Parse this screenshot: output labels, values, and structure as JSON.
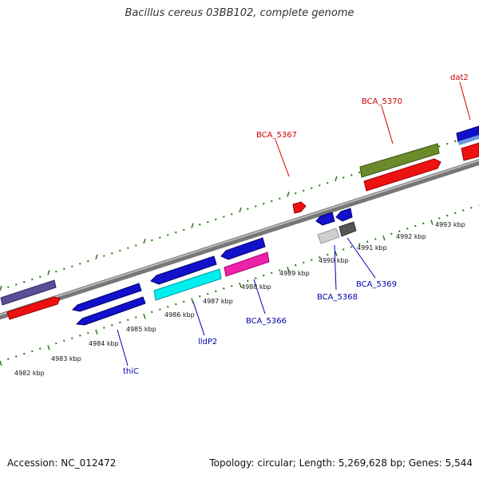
{
  "title": "Bacillus cereus 03BB102, complete genome",
  "footer": {
    "accession": "Accession: NC_012472",
    "topology": "Topology: circular; Length: 5,269,628 bp; Genes: 5,544"
  },
  "scale_labels": [
    "4982 kbp",
    "4983 kbp",
    "4984 kbp",
    "4985 kbp",
    "4986 kbp",
    "4987 kbp",
    "4988 kbp",
    "4989 kbp",
    "4990 kbp",
    "4991 kbp",
    "4992 kbp",
    "4993 kbp"
  ],
  "gene_labels": {
    "forward": [
      "BCA_5367",
      "BCA_5370",
      "dat2"
    ],
    "reverse": [
      "thiC",
      "lldP2",
      "BCA_5366",
      "BCA_5368",
      "BCA_5369"
    ]
  },
  "colors": {
    "forward_label": "#cc0000",
    "reverse_label": "#0000aa",
    "tick": "#2a7a1a",
    "backbone": "#777777"
  }
}
